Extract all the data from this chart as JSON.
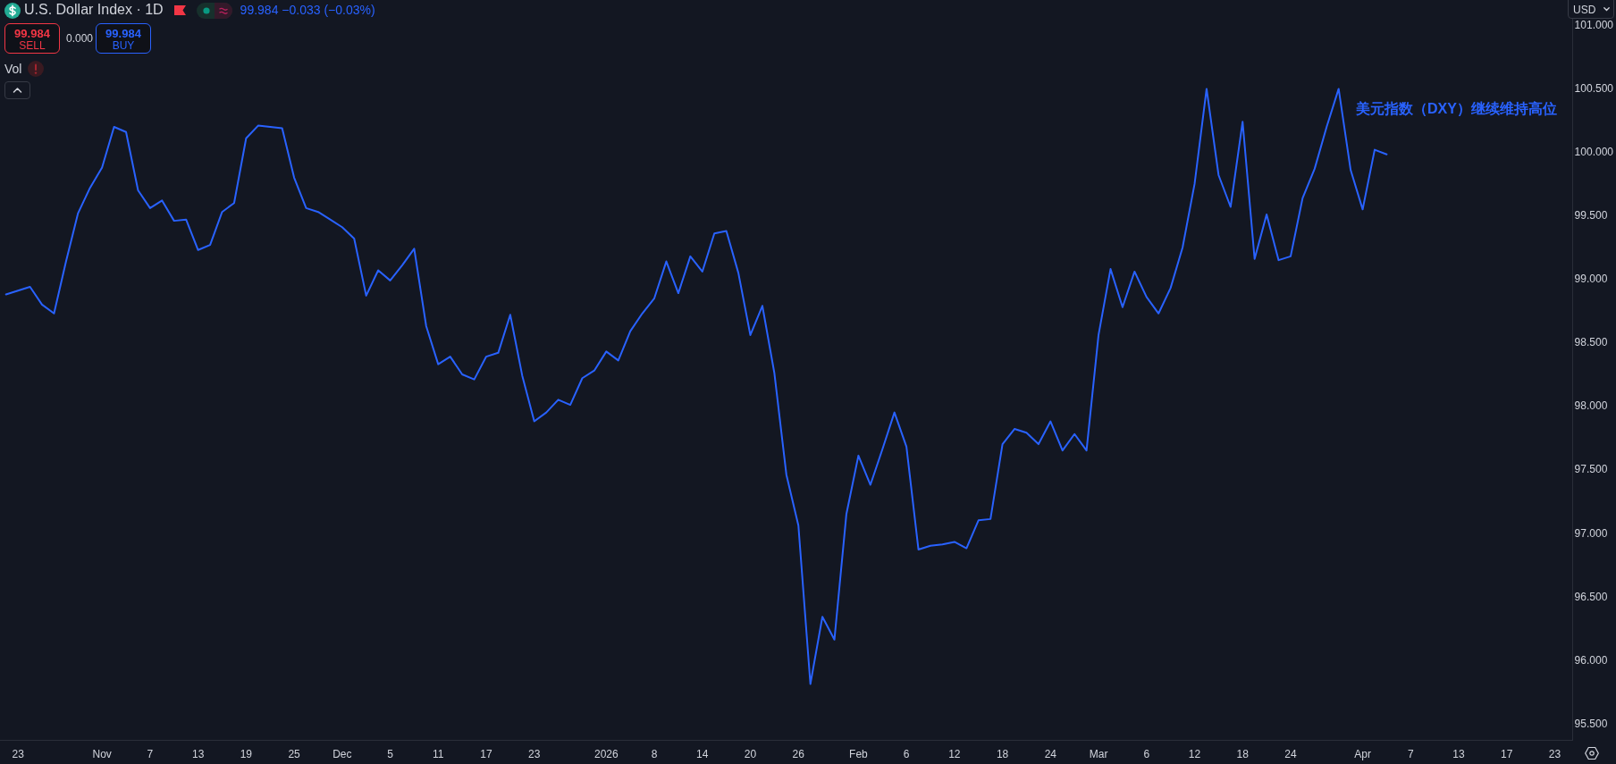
{
  "chart_data": {
    "type": "line",
    "title": "U.S. Dollar Index · 1D",
    "subtitle": "99.984 −0.033 (−0.03%)",
    "annotations": [
      "美元指数（DXY）继续维持高位",
      "99.984",
      "SELL",
      "0.000",
      "99.984",
      "BUY",
      "Vol",
      "USD"
    ],
    "categories": [
      null,
      "23",
      null,
      null,
      null,
      null,
      null,
      null,
      "Nov",
      null,
      null,
      null,
      "7",
      null,
      null,
      null,
      "13",
      null,
      null,
      null,
      "19",
      null,
      null,
      null,
      "25",
      null,
      null,
      null,
      "Dec",
      null,
      null,
      null,
      "5",
      null,
      null,
      null,
      "11",
      null,
      null,
      null,
      "17",
      null,
      null,
      null,
      "23",
      null,
      null,
      null,
      null,
      null,
      "2026",
      null,
      null,
      null,
      "8",
      null,
      null,
      null,
      "14",
      null,
      null,
      null,
      "20",
      null,
      null,
      null,
      "26",
      null,
      null,
      null,
      null,
      "Feb",
      null,
      null,
      null,
      "6",
      null,
      null,
      null,
      "12",
      null,
      null,
      null,
      "18",
      null,
      null,
      null,
      "24",
      null,
      null,
      null,
      "Mar",
      null,
      null,
      null,
      "6",
      null,
      null,
      null,
      "12",
      null,
      null,
      null,
      "18",
      null,
      null,
      null,
      "24",
      null,
      null,
      null,
      null,
      null,
      "Apr",
      null,
      null,
      null,
      "7",
      null,
      null,
      null,
      "13",
      null,
      null,
      null,
      "17",
      null,
      null,
      null,
      "23",
      null
    ],
    "values": [
      98.88,
      98.91,
      98.94,
      98.8,
      98.73,
      99.14,
      99.52,
      99.72,
      99.88,
      100.2,
      100.16,
      99.7,
      99.56,
      99.62,
      99.46,
      99.47,
      99.23,
      99.27,
      99.53,
      99.6,
      100.11,
      100.21,
      100.2,
      100.19,
      99.8,
      99.56,
      99.53,
      99.47,
      99.41,
      99.32,
      98.87,
      99.07,
      98.99,
      99.11,
      99.24,
      98.63,
      98.33,
      98.39,
      98.25,
      98.21,
      98.39,
      98.42,
      98.72,
      98.24,
      97.88,
      97.95,
      98.05,
      98.01,
      98.22,
      98.28,
      98.43,
      98.36,
      98.59,
      98.73,
      98.85,
      99.14,
      98.89,
      99.18,
      99.06,
      99.36,
      99.38,
      99.05,
      98.56,
      98.79,
      98.26,
      97.46,
      97.06,
      95.81,
      96.34,
      96.16,
      97.15,
      97.61,
      97.38,
      97.66,
      97.95,
      97.68,
      96.87,
      96.9,
      96.91,
      96.93,
      96.88,
      97.1,
      97.11,
      97.7,
      97.82,
      97.79,
      97.7,
      97.88,
      97.65,
      97.78,
      97.65,
      98.56,
      99.08,
      98.78,
      99.06,
      98.86,
      98.73,
      98.93,
      99.25,
      99.75,
      100.5,
      99.82,
      99.57,
      100.24,
      99.16,
      99.51,
      99.15,
      99.18,
      99.64,
      99.87,
      100.2,
      100.5,
      99.86,
      99.55,
      100.02,
      99.984,
      null,
      null,
      null,
      null,
      null,
      null,
      null,
      null,
      null,
      null,
      null,
      null,
      null,
      null,
      null
    ],
    "color": "#2962ff",
    "ylim": [
      95.37,
      101.2
    ],
    "yticks": [
      {
        "value": 95.5,
        "label": "95.500"
      },
      {
        "value": 96,
        "label": "96.000"
      },
      {
        "value": 96.5,
        "label": "96.500"
      },
      {
        "value": 97,
        "label": "97.000"
      },
      {
        "value": 97.5,
        "label": "97.500"
      },
      {
        "value": 98,
        "label": "98.000"
      },
      {
        "value": 98.5,
        "label": "98.500"
      },
      {
        "value": 99,
        "label": "99.000"
      },
      {
        "value": 99.5,
        "label": "99.500"
      },
      {
        "value": 100,
        "label": "100.000"
      },
      {
        "value": 100.5,
        "label": "100.500"
      },
      {
        "value": 101,
        "label": "101.000"
      }
    ],
    "grid": false
  }
}
